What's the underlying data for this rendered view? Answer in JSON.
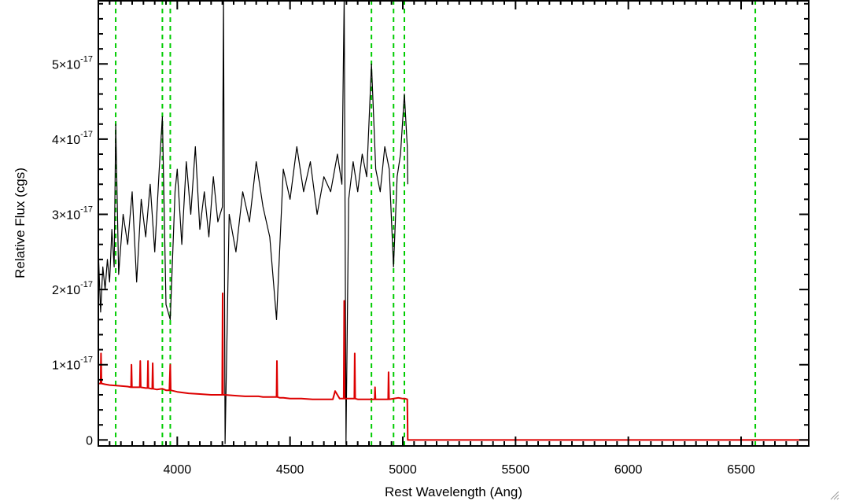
{
  "chart_data": {
    "type": "line",
    "xlabel": "Rest Wavelength (Ang)",
    "ylabel": "Relative Flux (cgs)",
    "xlim": [
      3650,
      6800
    ],
    "ylim": [
      -8e-19,
      5.85e-17
    ],
    "x_ticks": [
      {
        "value": 4000,
        "label": "4000"
      },
      {
        "value": 4500,
        "label": "4500"
      },
      {
        "value": 5000,
        "label": "5000"
      },
      {
        "value": 5500,
        "label": "5500"
      },
      {
        "value": 6000,
        "label": "6000"
      },
      {
        "value": 6500,
        "label": "6500"
      }
    ],
    "y_ticks": [
      {
        "value": 0,
        "label": "0"
      },
      {
        "value": 1e-17,
        "mant": "1×10",
        "exp": "-17"
      },
      {
        "value": 2e-17,
        "mant": "2×10",
        "exp": "-17"
      },
      {
        "value": 3e-17,
        "mant": "3×10",
        "exp": "-17"
      },
      {
        "value": 4e-17,
        "mant": "4×10",
        "exp": "-17"
      },
      {
        "value": 5e-17,
        "mant": "5×10",
        "exp": "-17"
      }
    ],
    "reference_lines": [
      3727,
      3934,
      3969,
      4861,
      4959,
      5007,
      6563
    ],
    "colors": {
      "observed": "#000000",
      "model": "#dd0000",
      "reference": "#00cc00"
    },
    "series": [
      {
        "key": "observed",
        "x": [
          3650,
          3660,
          3670,
          3680,
          3690,
          3700,
          3710,
          3720,
          3727,
          3740,
          3760,
          3780,
          3800,
          3820,
          3840,
          3860,
          3880,
          3900,
          3920,
          3934,
          3950,
          3969,
          3990,
          4000,
          4020,
          4040,
          4060,
          4080,
          4100,
          4120,
          4140,
          4160,
          4180,
          4200,
          4205,
          4212,
          4230,
          4260,
          4290,
          4320,
          4350,
          4380,
          4410,
          4440,
          4470,
          4500,
          4530,
          4560,
          4590,
          4620,
          4650,
          4680,
          4710,
          4730,
          4740,
          4748,
          4760,
          4780,
          4800,
          4820,
          4840,
          4861,
          4880,
          4900,
          4920,
          4940,
          4959,
          4975,
          4990,
          5007,
          5020,
          5022
        ],
        "y": [
          2.5e-17,
          1.7e-17,
          2.3e-17,
          2e-17,
          2.4e-17,
          2.1e-17,
          2.8e-17,
          2.3e-17,
          4.2e-17,
          2.2e-17,
          3e-17,
          2.6e-17,
          3.3e-17,
          2.1e-17,
          3.2e-17,
          2.7e-17,
          3.4e-17,
          2.5e-17,
          3.6e-17,
          4.3e-17,
          1.8e-17,
          1.6e-17,
          3.3e-17,
          3.6e-17,
          2.6e-17,
          3.7e-17,
          3e-17,
          3.9e-17,
          2.8e-17,
          3.3e-17,
          2.7e-17,
          3.5e-17,
          2.9e-17,
          3.1e-17,
          5.9e-17,
          -5e-19,
          3e-17,
          2.5e-17,
          3.3e-17,
          2.9e-17,
          3.7e-17,
          3.1e-17,
          2.7e-17,
          1.6e-17,
          3.6e-17,
          3.2e-17,
          3.9e-17,
          3.3e-17,
          3.7e-17,
          3e-17,
          3.5e-17,
          3.3e-17,
          3.8e-17,
          3.4e-17,
          5.9e-17,
          -5e-19,
          3.2e-17,
          3.7e-17,
          3.3e-17,
          3.8e-17,
          3.5e-17,
          5e-17,
          3.6e-17,
          3.3e-17,
          3.9e-17,
          3.6e-17,
          2.3e-17,
          3.5e-17,
          3.8e-17,
          4.6e-17,
          3.9e-17,
          3.4e-17
        ]
      },
      {
        "key": "model",
        "x": [
          3650,
          3660,
          3662,
          3664,
          3680,
          3700,
          3740,
          3780,
          3795,
          3797,
          3799,
          3820,
          3834,
          3836,
          3838,
          3860,
          3868,
          3870,
          3872,
          3885,
          3889,
          3891,
          3893,
          3910,
          3934,
          3950,
          3965,
          3969,
          3971,
          4000,
          4050,
          4100,
          4150,
          4190,
          4199,
          4201,
          4203,
          4210,
          4250,
          4300,
          4340,
          4350,
          4360,
          4380,
          4400,
          4430,
          4440,
          4442,
          4444,
          4455,
          4470,
          4500,
          4550,
          4600,
          4650,
          4690,
          4700,
          4720,
          4738,
          4740,
          4742,
          4750,
          4780,
          4785,
          4787,
          4789,
          4800,
          4860,
          4875,
          4877,
          4879,
          4900,
          4930,
          4935,
          4937,
          4939,
          4960,
          4980,
          5000,
          5010,
          5020,
          5022,
          5024,
          5100,
          5500,
          6000,
          6500,
          6800
        ],
        "y": [
          7.5e-18,
          7.5e-18,
          1.15e-17,
          7.5e-18,
          7.4e-18,
          7.3e-18,
          7.2e-18,
          7.1e-18,
          7e-18,
          1e-17,
          7e-18,
          7e-18,
          7e-18,
          1.05e-17,
          7e-18,
          6.9e-18,
          6.9e-18,
          1.05e-17,
          6.9e-18,
          6.8e-18,
          6.8e-18,
          1.02e-17,
          6.8e-18,
          6.7e-18,
          6.8e-18,
          6.6e-18,
          6.6e-18,
          1e-17,
          6.6e-18,
          6.4e-18,
          6.2e-18,
          6.1e-18,
          6e-18,
          6e-18,
          6e-18,
          1.95e-17,
          6e-18,
          6e-18,
          5.9e-18,
          5.8e-18,
          5.8e-18,
          5.8e-18,
          5.8e-18,
          5.7e-18,
          5.7e-18,
          5.7e-18,
          5.7e-18,
          1.05e-17,
          5.7e-18,
          5.6e-18,
          5.6e-18,
          5.5e-18,
          5.5e-18,
          5.4e-18,
          5.4e-18,
          5.4e-18,
          6.5e-18,
          5.5e-18,
          5.5e-18,
          1.85e-17,
          5.5e-18,
          5.5e-18,
          5.5e-18,
          5.5e-18,
          1.15e-17,
          5.5e-18,
          5.4e-18,
          5.4e-18,
          5.4e-18,
          7e-18,
          5.4e-18,
          5.4e-18,
          5.4e-18,
          5.4e-18,
          9e-18,
          5.4e-18,
          5.5e-18,
          5.6e-18,
          5.5e-18,
          5.5e-18,
          5.4e-18,
          0.0,
          0.0,
          0.0,
          0.0,
          0.0,
          0.0,
          0.0
        ]
      }
    ]
  }
}
